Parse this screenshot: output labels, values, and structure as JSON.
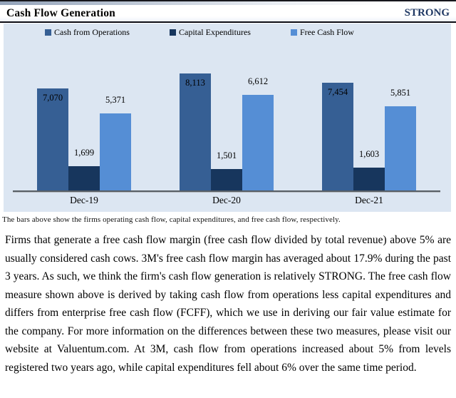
{
  "header": {
    "title": "Cash Flow Generation",
    "rating": "STRONG",
    "rating_color": "#1F3864"
  },
  "chart_data": {
    "type": "bar",
    "title": "",
    "categories": [
      "Dec-19",
      "Dec-20",
      "Dec-21"
    ],
    "series": [
      {
        "name": "Cash from Operations",
        "color": "#365F94",
        "values": [
          7070,
          8113,
          7454
        ]
      },
      {
        "name": "Capital Expenditures",
        "color": "#17365D",
        "values": [
          1699,
          1501,
          1603
        ]
      },
      {
        "name": "Free Cash Flow",
        "color": "#558ED5",
        "values": [
          5371,
          6612,
          5851
        ]
      }
    ],
    "data_labels": {
      "format": "thousands-comma",
      "series1_position": "inside-end",
      "other_position": "outside-end"
    },
    "legend_position": "top",
    "grid": false,
    "ylim": [
      0,
      10400
    ],
    "panel_background": "#DCE6F2",
    "axis_color": "#585F66"
  },
  "caption": "The bars above show the firms operating cash flow, capital expenditures, and free cash flow, respectively.",
  "body_text": "Firms that generate a free cash flow margin (free cash flow divided by total revenue) above 5% are usually considered cash cows. 3M's free cash flow margin has averaged about 17.9% during the past 3 years. As such, we think the firm's cash flow generation is relatively STRONG. The free cash flow measure shown above is derived by taking cash flow from operations less capital expenditures and differs from enterprise free cash flow (FCFF), which we use in deriving our fair value estimate for the company. For more information on the differences between these two measures, please visit our website at Valuentum.com. At 3M, cash flow from operations increased about 5% from levels registered two years ago, while capital expenditures fell about 6% over the same time period."
}
